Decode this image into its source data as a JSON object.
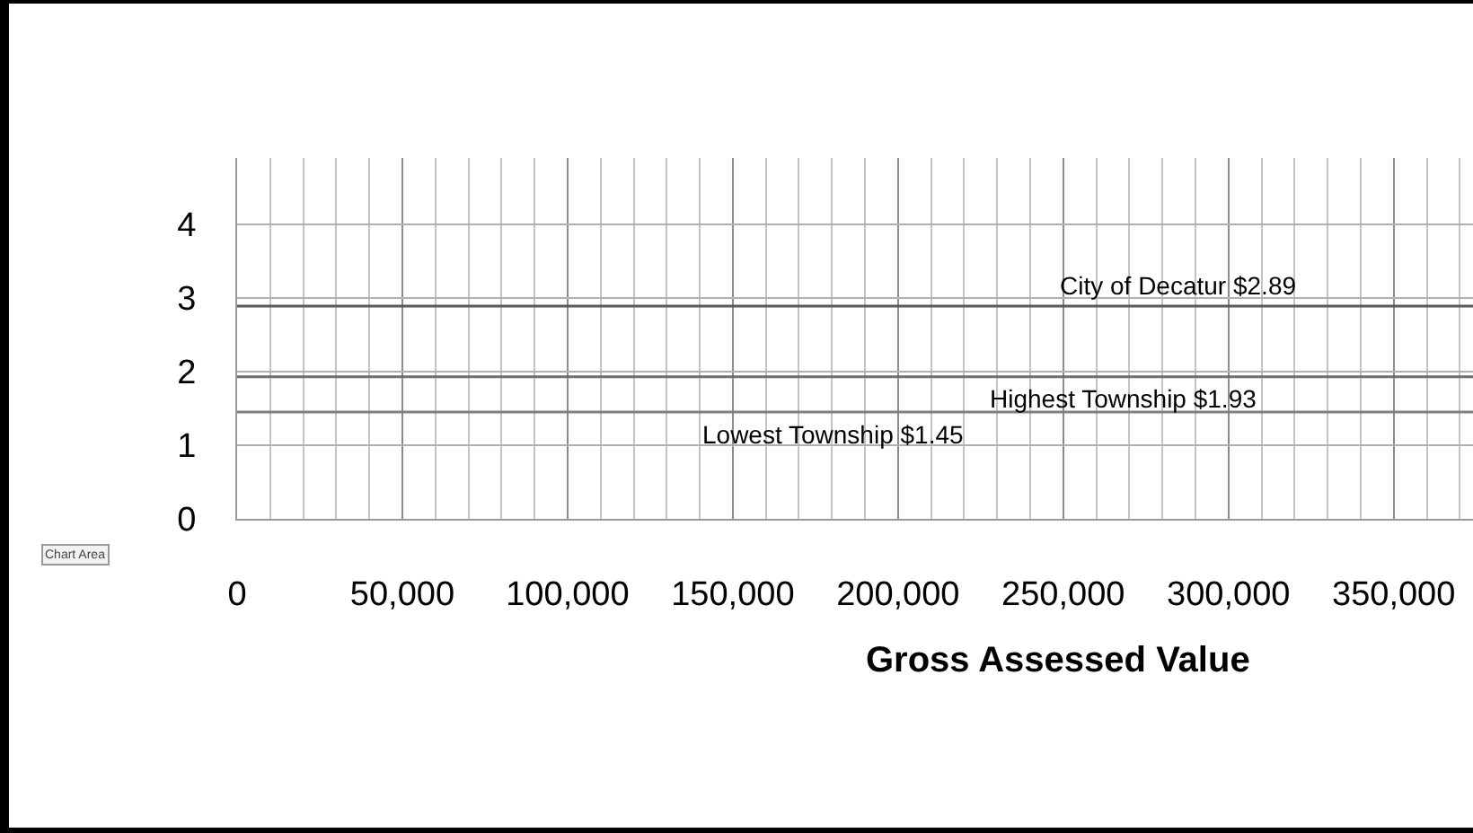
{
  "chart_data": {
    "type": "line",
    "xlabel": "Gross Assessed Value",
    "x": [
      0,
      374000
    ],
    "series": [
      {
        "color": "#595959",
        "values": [
          2.89,
          2.89
        ]
      },
      {
        "color": "#6e6e6e",
        "values": [
          1.93,
          1.93
        ]
      },
      {
        "color": "#808080",
        "values": [
          1.45,
          1.45
        ]
      }
    ],
    "xlim": [
      0,
      374000
    ],
    "xticks": [
      0,
      {
        "value": 50000,
        "label": "50,000"
      },
      {
        "value": 100000,
        "label": "100,000"
      },
      {
        "value": 150000,
        "label": "150,000"
      },
      {
        "value": 200000,
        "label": "200,000"
      },
      {
        "value": 250000,
        "label": "250,000"
      },
      {
        "value": 300000,
        "label": "300,000"
      },
      {
        "value": 350000,
        "label": "350,000"
      }
    ],
    "ylim": [
      0,
      4.9
    ],
    "yticks": [
      0,
      1,
      2,
      3,
      4
    ],
    "grid": true,
    "annotations": [
      {
        "text": "City of Decatur $2.89",
        "x": 285000,
        "y": 2.89
      },
      {
        "text": "Highest Township $1.93",
        "x": 268000,
        "y": 1.93
      },
      {
        "text": "Lowest Township $1.45",
        "x": 180000,
        "y": 1.45
      },
      "Chart Area"
    ]
  }
}
